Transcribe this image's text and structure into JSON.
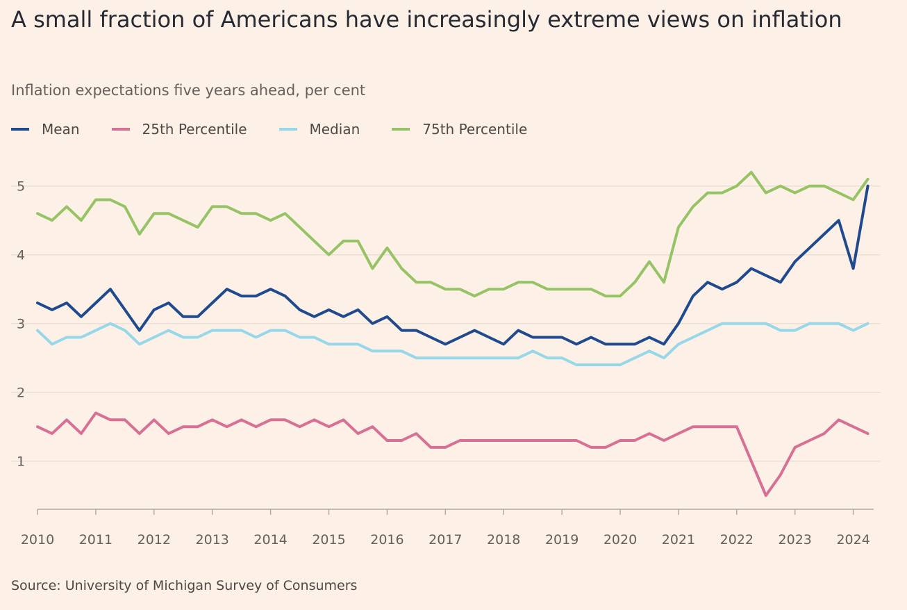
{
  "title": "A small fraction of Americans have increasingly extreme views on inflation",
  "subtitle": "Inflation expectations five years ahead, per cent",
  "source": "Source: University of Michigan Survey of Consumers",
  "chart_data": {
    "type": "line",
    "title": "A small fraction of Americans have increasingly extreme views on inflation",
    "subtitle": "Inflation expectations five years ahead, per cent",
    "xlabel": "",
    "ylabel": "",
    "xlim": [
      2010,
      2024.35
    ],
    "ylim": [
      0.3,
      5.3
    ],
    "y_ticks": [
      1,
      2,
      3,
      4,
      5
    ],
    "x_ticks": [
      2010,
      2011,
      2012,
      2013,
      2014,
      2015,
      2016,
      2017,
      2018,
      2019,
      2020,
      2021,
      2022,
      2023,
      2024
    ],
    "grid": "horizontal",
    "legend": "top-left",
    "series": [
      {
        "name": "Mean",
        "color": "#1f4b8e",
        "x": [
          2010,
          2010.25,
          2010.5,
          2010.75,
          2011,
          2011.25,
          2011.5,
          2011.75,
          2012,
          2012.25,
          2012.5,
          2012.75,
          2013,
          2013.25,
          2013.5,
          2013.75,
          2014,
          2014.25,
          2014.5,
          2014.75,
          2015,
          2015.25,
          2015.5,
          2015.75,
          2016,
          2016.25,
          2016.5,
          2016.75,
          2017,
          2017.25,
          2017.5,
          2017.75,
          2018,
          2018.25,
          2018.5,
          2018.75,
          2019,
          2019.25,
          2019.5,
          2019.75,
          2020,
          2020.25,
          2020.5,
          2020.75,
          2021,
          2021.25,
          2021.5,
          2021.75,
          2022,
          2022.25,
          2022.5,
          2022.75,
          2023,
          2023.25,
          2023.5,
          2023.75,
          2024,
          2024.25
        ],
        "y": [
          3.3,
          3.2,
          3.3,
          3.1,
          3.3,
          3.5,
          3.2,
          2.9,
          3.2,
          3.3,
          3.1,
          3.1,
          3.3,
          3.5,
          3.4,
          3.4,
          3.5,
          3.4,
          3.2,
          3.1,
          3.2,
          3.1,
          3.2,
          3.0,
          3.1,
          2.9,
          2.9,
          2.8,
          2.7,
          2.8,
          2.9,
          2.8,
          2.7,
          2.9,
          2.8,
          2.8,
          2.8,
          2.7,
          2.8,
          2.7,
          2.7,
          2.7,
          2.8,
          2.7,
          3.0,
          3.4,
          3.6,
          3.5,
          3.6,
          3.8,
          3.7,
          3.6,
          3.9,
          4.1,
          4.3,
          4.5,
          3.8,
          5.0
        ]
      },
      {
        "name": "25th Percentile",
        "color": "#d86f94",
        "x": [
          2010,
          2010.25,
          2010.5,
          2010.75,
          2011,
          2011.25,
          2011.5,
          2011.75,
          2012,
          2012.25,
          2012.5,
          2012.75,
          2013,
          2013.25,
          2013.5,
          2013.75,
          2014,
          2014.25,
          2014.5,
          2014.75,
          2015,
          2015.25,
          2015.5,
          2015.75,
          2016,
          2016.25,
          2016.5,
          2016.75,
          2017,
          2017.25,
          2017.5,
          2017.75,
          2018,
          2018.25,
          2018.5,
          2018.75,
          2019,
          2019.25,
          2019.5,
          2019.75,
          2020,
          2020.25,
          2020.5,
          2020.75,
          2021,
          2021.25,
          2021.5,
          2021.75,
          2022,
          2022.25,
          2022.5,
          2022.75,
          2023,
          2023.25,
          2023.5,
          2023.75,
          2024,
          2024.25
        ],
        "y": [
          1.5,
          1.4,
          1.6,
          1.4,
          1.7,
          1.6,
          1.6,
          1.4,
          1.6,
          1.4,
          1.5,
          1.5,
          1.6,
          1.5,
          1.6,
          1.5,
          1.6,
          1.6,
          1.5,
          1.6,
          1.5,
          1.6,
          1.4,
          1.5,
          1.3,
          1.3,
          1.4,
          1.2,
          1.2,
          1.3,
          1.3,
          1.3,
          1.3,
          1.3,
          1.3,
          1.3,
          1.3,
          1.3,
          1.2,
          1.2,
          1.3,
          1.3,
          1.4,
          1.3,
          1.4,
          1.5,
          1.5,
          1.5,
          1.5,
          1.0,
          0.5,
          0.8,
          1.2,
          1.3,
          1.4,
          1.6,
          1.5,
          1.4
        ]
      },
      {
        "name": "Median",
        "color": "#96d8ea",
        "x": [
          2010,
          2010.25,
          2010.5,
          2010.75,
          2011,
          2011.25,
          2011.5,
          2011.75,
          2012,
          2012.25,
          2012.5,
          2012.75,
          2013,
          2013.25,
          2013.5,
          2013.75,
          2014,
          2014.25,
          2014.5,
          2014.75,
          2015,
          2015.25,
          2015.5,
          2015.75,
          2016,
          2016.25,
          2016.5,
          2016.75,
          2017,
          2017.25,
          2017.5,
          2017.75,
          2018,
          2018.25,
          2018.5,
          2018.75,
          2019,
          2019.25,
          2019.5,
          2019.75,
          2020,
          2020.25,
          2020.5,
          2020.75,
          2021,
          2021.25,
          2021.5,
          2021.75,
          2022,
          2022.25,
          2022.5,
          2022.75,
          2023,
          2023.25,
          2023.5,
          2023.75,
          2024,
          2024.25
        ],
        "y": [
          2.9,
          2.7,
          2.8,
          2.8,
          2.9,
          3.0,
          2.9,
          2.7,
          2.8,
          2.9,
          2.8,
          2.8,
          2.9,
          2.9,
          2.9,
          2.8,
          2.9,
          2.9,
          2.8,
          2.8,
          2.7,
          2.7,
          2.7,
          2.6,
          2.6,
          2.6,
          2.5,
          2.5,
          2.5,
          2.5,
          2.5,
          2.5,
          2.5,
          2.5,
          2.6,
          2.5,
          2.5,
          2.4,
          2.4,
          2.4,
          2.4,
          2.5,
          2.6,
          2.5,
          2.7,
          2.8,
          2.9,
          3.0,
          3.0,
          3.0,
          3.0,
          2.9,
          2.9,
          3.0,
          3.0,
          3.0,
          2.9,
          3.0
        ]
      },
      {
        "name": "75th Percentile",
        "color": "#96c365",
        "x": [
          2010,
          2010.25,
          2010.5,
          2010.75,
          2011,
          2011.25,
          2011.5,
          2011.75,
          2012,
          2012.25,
          2012.5,
          2012.75,
          2013,
          2013.25,
          2013.5,
          2013.75,
          2014,
          2014.25,
          2014.5,
          2014.75,
          2015,
          2015.25,
          2015.5,
          2015.75,
          2016,
          2016.25,
          2016.5,
          2016.75,
          2017,
          2017.25,
          2017.5,
          2017.75,
          2018,
          2018.25,
          2018.5,
          2018.75,
          2019,
          2019.25,
          2019.5,
          2019.75,
          2020,
          2020.25,
          2020.5,
          2020.75,
          2021,
          2021.25,
          2021.5,
          2021.75,
          2022,
          2022.25,
          2022.5,
          2022.75,
          2023,
          2023.25,
          2023.5,
          2023.75,
          2024,
          2024.25
        ],
        "y": [
          4.6,
          4.5,
          4.7,
          4.5,
          4.8,
          4.8,
          4.7,
          4.3,
          4.6,
          4.6,
          4.5,
          4.4,
          4.7,
          4.7,
          4.6,
          4.6,
          4.5,
          4.6,
          4.4,
          4.2,
          4.0,
          4.2,
          4.2,
          3.8,
          4.1,
          3.8,
          3.6,
          3.6,
          3.5,
          3.5,
          3.4,
          3.5,
          3.5,
          3.6,
          3.6,
          3.5,
          3.5,
          3.5,
          3.5,
          3.4,
          3.4,
          3.6,
          3.9,
          3.6,
          4.4,
          4.7,
          4.9,
          4.9,
          5.0,
          5.2,
          4.9,
          5.0,
          4.9,
          5.0,
          5.0,
          4.9,
          4.8,
          5.1
        ]
      }
    ]
  }
}
